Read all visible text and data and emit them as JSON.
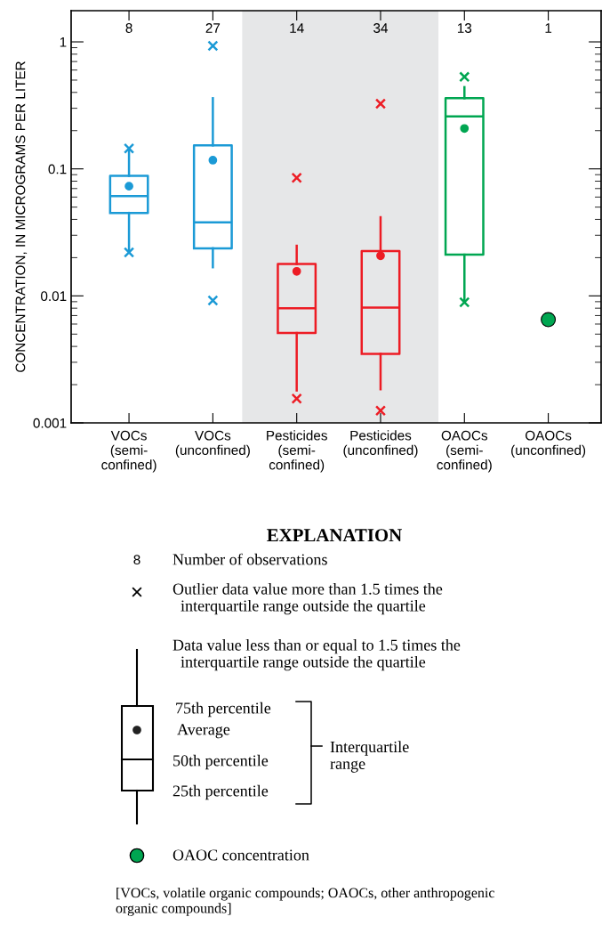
{
  "chart_data": {
    "type": "box",
    "ylabel": "CONCENTRATION, IN MICROGRAMS PER LITER",
    "categories": [
      "VOCs\n(semi-\nconfined)",
      "VOCs\n(unconfined)",
      "Pesticides\n(semi-\nconfined)",
      "Pesticides\n(unconfined)",
      "OAOCs\n(semi-\nconfined)",
      "OAOCs\n(unconfined)"
    ],
    "log": true,
    "ylim": [
      0.001,
      1.76
    ],
    "yticks": [
      0.001,
      0.01,
      0.1,
      1
    ],
    "colors": [
      "#1b9ad6",
      "#1b9ad6",
      "#ed1c24",
      "#ed1c24",
      "#00a651",
      null
    ],
    "boxes": [
      {
        "low": 0.023,
        "q1": 0.045,
        "median": 0.061,
        "q3": 0.088,
        "high": 0.14,
        "mean": 0.073,
        "outliers": [
          0.022,
          0.145
        ]
      },
      {
        "low": 0.0168,
        "q1": 0.0237,
        "median": 0.038,
        "q3": 0.153,
        "high": 0.36,
        "mean": 0.117,
        "outliers": [
          0.0092,
          0.93
        ]
      },
      {
        "low": 0.0018,
        "q1": 0.0051,
        "median": 0.008,
        "q3": 0.0178,
        "high": 0.0248,
        "mean": 0.0156,
        "outliers": [
          0.00155,
          0.085
        ]
      },
      {
        "low": 0.00184,
        "q1": 0.0035,
        "median": 0.0081,
        "q3": 0.0225,
        "high": 0.0416,
        "mean": 0.0207,
        "outliers": [
          0.00125,
          0.326
        ]
      },
      {
        "low": 0.0093,
        "q1": 0.0211,
        "median": 0.259,
        "q3": 0.36,
        "high": 0.44,
        "mean": 0.208,
        "outliers": [
          0.0089,
          0.53
        ]
      },
      null
    ],
    "series": [
      {
        "type": "scatter",
        "x": [
          "OAOCs\n(unconfined)"
        ],
        "values": [
          0.0065
        ],
        "color": "#00a651",
        "marker": "circle"
      }
    ],
    "annotations": [
      "8",
      "27",
      "14",
      "34",
      "13",
      "1",
      "EXPLANATION",
      "8",
      "Number of observations",
      "Outlier data value more than 1.5 times the\n  interquartile range outside the quartile",
      "Data value less than or equal to 1.5 times the\n  interquartile range outside the quartile",
      "75th percentile",
      "Average",
      "50th percentile",
      "25th percentile",
      "Interquartile\nrange",
      "OAOC concentration",
      "[VOCs, volatile organic compounds; OAOCs, other anthropogenic\norganic compounds]"
    ]
  }
}
